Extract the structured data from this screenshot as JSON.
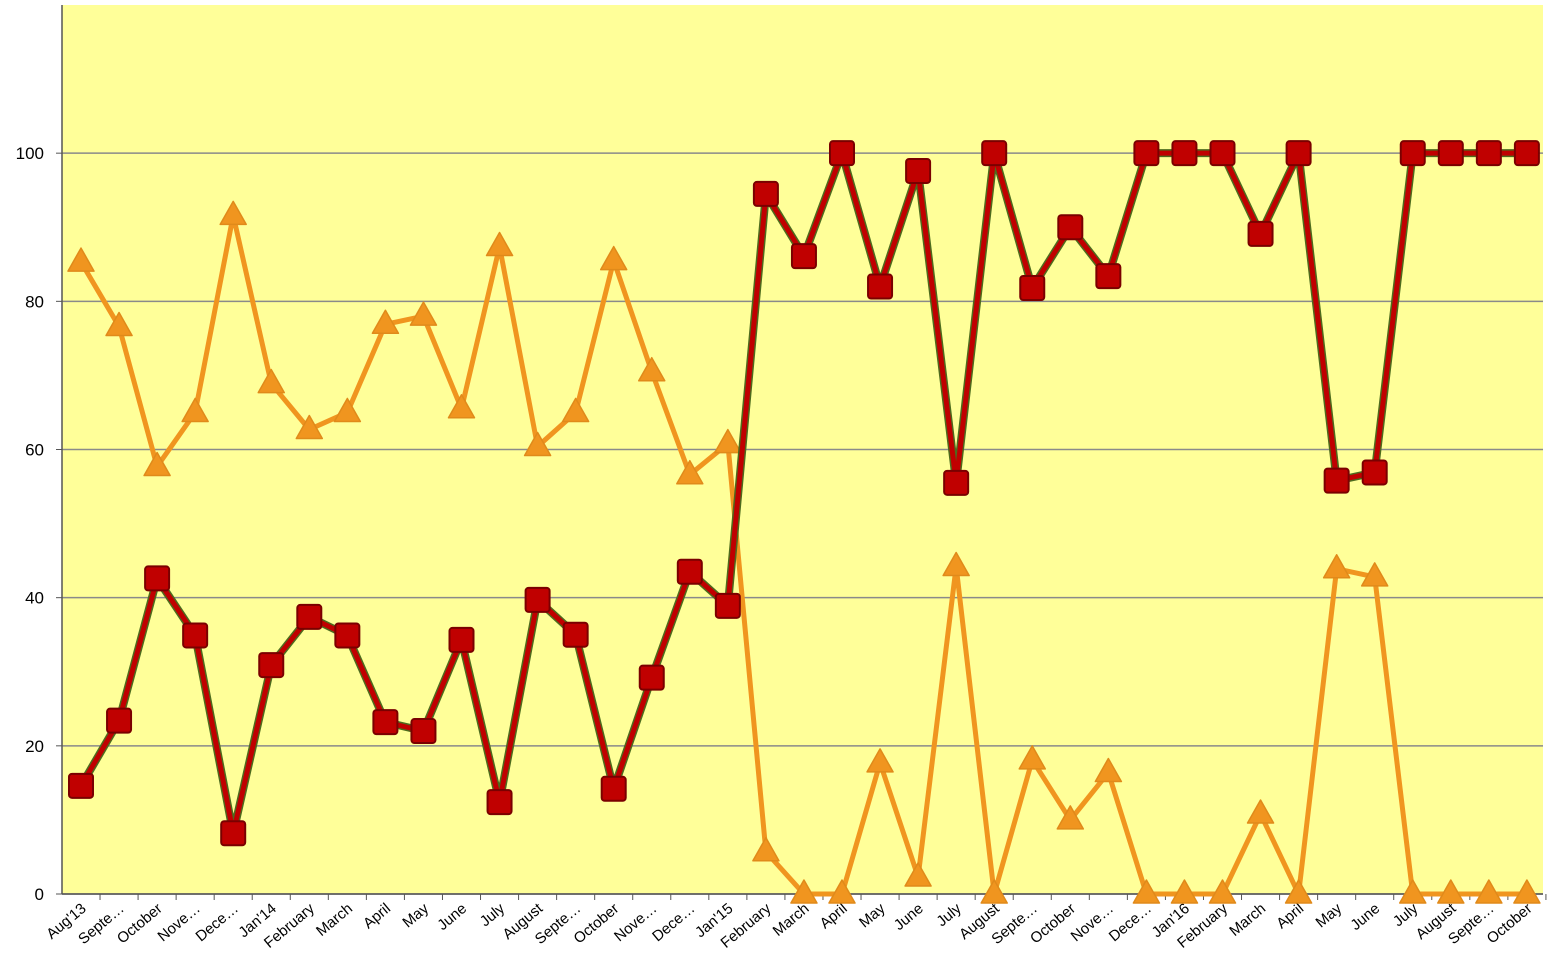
{
  "chart_data": {
    "type": "line",
    "categories": [
      "Aug'13",
      "Septe…",
      "October",
      "Nove…",
      "Dece…",
      "Jan'14",
      "February",
      "March",
      "April",
      "May",
      "June",
      "July",
      "August",
      "Septe…",
      "October",
      "Nove…",
      "Dece…",
      "Jan'15",
      "February",
      "March",
      "April",
      "May",
      "June",
      "July",
      "August",
      "Septe…",
      "October",
      "Nove…",
      "Dece…",
      "Jan'16",
      "February",
      "March",
      "April",
      "May",
      "June",
      "July",
      "August",
      "Septe…",
      "October"
    ],
    "series": [
      {
        "color": "#f0951f",
        "marker": "triangle",
        "values": [
          85.3,
          76.6,
          57.7,
          65,
          91.6,
          68.9,
          62.7,
          65,
          76.9,
          78,
          65.5,
          87.4,
          60.4,
          65,
          85.5,
          70.5,
          56.6,
          60.8,
          5.7,
          0,
          0,
          17.7,
          2.3,
          44.2,
          0,
          18.1,
          10,
          16.4,
          0,
          0,
          0,
          10.8,
          0,
          43.9,
          42.8,
          0,
          0,
          0,
          0
        ]
      },
      {
        "color": "#c00000",
        "marker": "square",
        "values": [
          14.6,
          23.4,
          42.6,
          34.9,
          8.2,
          30.9,
          37.4,
          34.9,
          23.2,
          22,
          34.3,
          12.4,
          39.7,
          35,
          14.2,
          29.2,
          43.5,
          38.9,
          94.5,
          86.1,
          100,
          82,
          97.6,
          55.5,
          100,
          81.8,
          90,
          83.4,
          100,
          100,
          100,
          89.1,
          100,
          55.8,
          56.9,
          100,
          100,
          100,
          100
        ]
      }
    ],
    "ylim": [
      0,
      120
    ],
    "yticks": [
      0,
      20,
      40,
      60,
      80,
      100
    ],
    "grid": true,
    "background": "#ffff99"
  }
}
